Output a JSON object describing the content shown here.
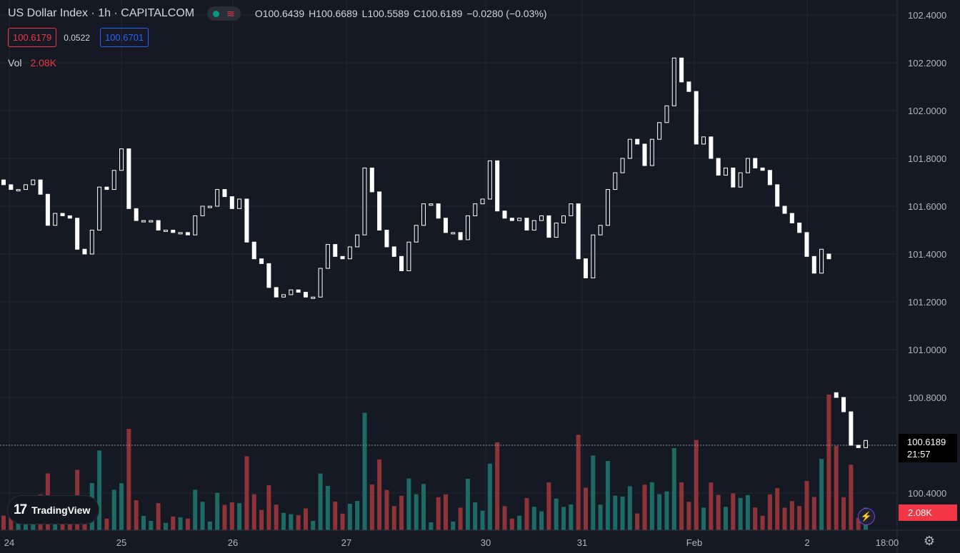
{
  "header": {
    "symbol": "US Dollar Index · 1h · CAPITALCOM",
    "ohlc": {
      "o_label": "O",
      "o": "100.6439",
      "h_label": "H",
      "h": "100.6689",
      "l_label": "L",
      "l": "100.5589",
      "c_label": "C",
      "c": "100.6189",
      "change": "−0.0280 (−0.03%)"
    },
    "status_icon": "market-open-dot-icon",
    "indicator_icon": "waves-icon"
  },
  "quote": {
    "bid": "100.6179",
    "spread": "0.0522",
    "ask": "100.6701"
  },
  "volume": {
    "label": "Vol",
    "value": "2.08K"
  },
  "brand": {
    "label": "TradingView",
    "logo_text": "17"
  },
  "price_badge": {
    "price": "100.6189",
    "countdown": "21:57"
  },
  "volume_badge": "2.08K",
  "colors": {
    "background": "#151924",
    "up_volume": "#1e6b66",
    "down_volume": "#8f3339",
    "candle": "#ffffff",
    "bid": "#f23645",
    "ask": "#2962ff"
  },
  "chart_data": {
    "type": "candlestick",
    "y_axis": {
      "ticks": [
        "102.4000",
        "102.2000",
        "102.0000",
        "101.8000",
        "101.6000",
        "101.4000",
        "101.2000",
        "101.0000",
        "100.8000",
        "100.4000"
      ],
      "range": [
        100.36,
        102.42
      ]
    },
    "x_axis": {
      "ticks": [
        "24",
        "25",
        "26",
        "27",
        "30",
        "31",
        "Feb",
        "2",
        "18:00"
      ]
    },
    "last_price": 100.6189,
    "closes": [
      101.69,
      101.67,
      101.67,
      101.69,
      101.71,
      101.65,
      101.52,
      101.57,
      101.56,
      101.55,
      101.42,
      101.4,
      101.5,
      101.68,
      101.67,
      101.75,
      101.84,
      101.59,
      101.54,
      101.54,
      101.54,
      101.5,
      101.5,
      101.49,
      101.49,
      101.48,
      101.56,
      101.6,
      101.6,
      101.67,
      101.64,
      101.59,
      101.63,
      101.45,
      101.38,
      101.36,
      101.26,
      101.22,
      101.23,
      101.25,
      101.24,
      101.22,
      101.22,
      101.34,
      101.44,
      101.39,
      101.38,
      101.43,
      101.48,
      101.76,
      101.66,
      101.5,
      101.43,
      101.39,
      101.33,
      101.45,
      101.52,
      101.61,
      101.61,
      101.55,
      101.49,
      101.49,
      101.46,
      101.56,
      101.61,
      101.63,
      101.79,
      101.58,
      101.55,
      101.54,
      101.55,
      101.5,
      101.54,
      101.56,
      101.47,
      101.53,
      101.56,
      101.61,
      101.38,
      101.3,
      101.48,
      101.52,
      101.67,
      101.74,
      101.8,
      101.88,
      101.86,
      101.77,
      101.88,
      101.95,
      102.02,
      102.22,
      102.12,
      102.08,
      101.86,
      101.89,
      101.8,
      101.73,
      101.76,
      101.68,
      101.74,
      101.8,
      101.76,
      101.75,
      101.69,
      101.6,
      101.57,
      101.53,
      101.49,
      101.39,
      101.32,
      101.42,
      101.38,
      100.8,
      100.74,
      100.6,
      100.59,
      100.62
    ]
  }
}
